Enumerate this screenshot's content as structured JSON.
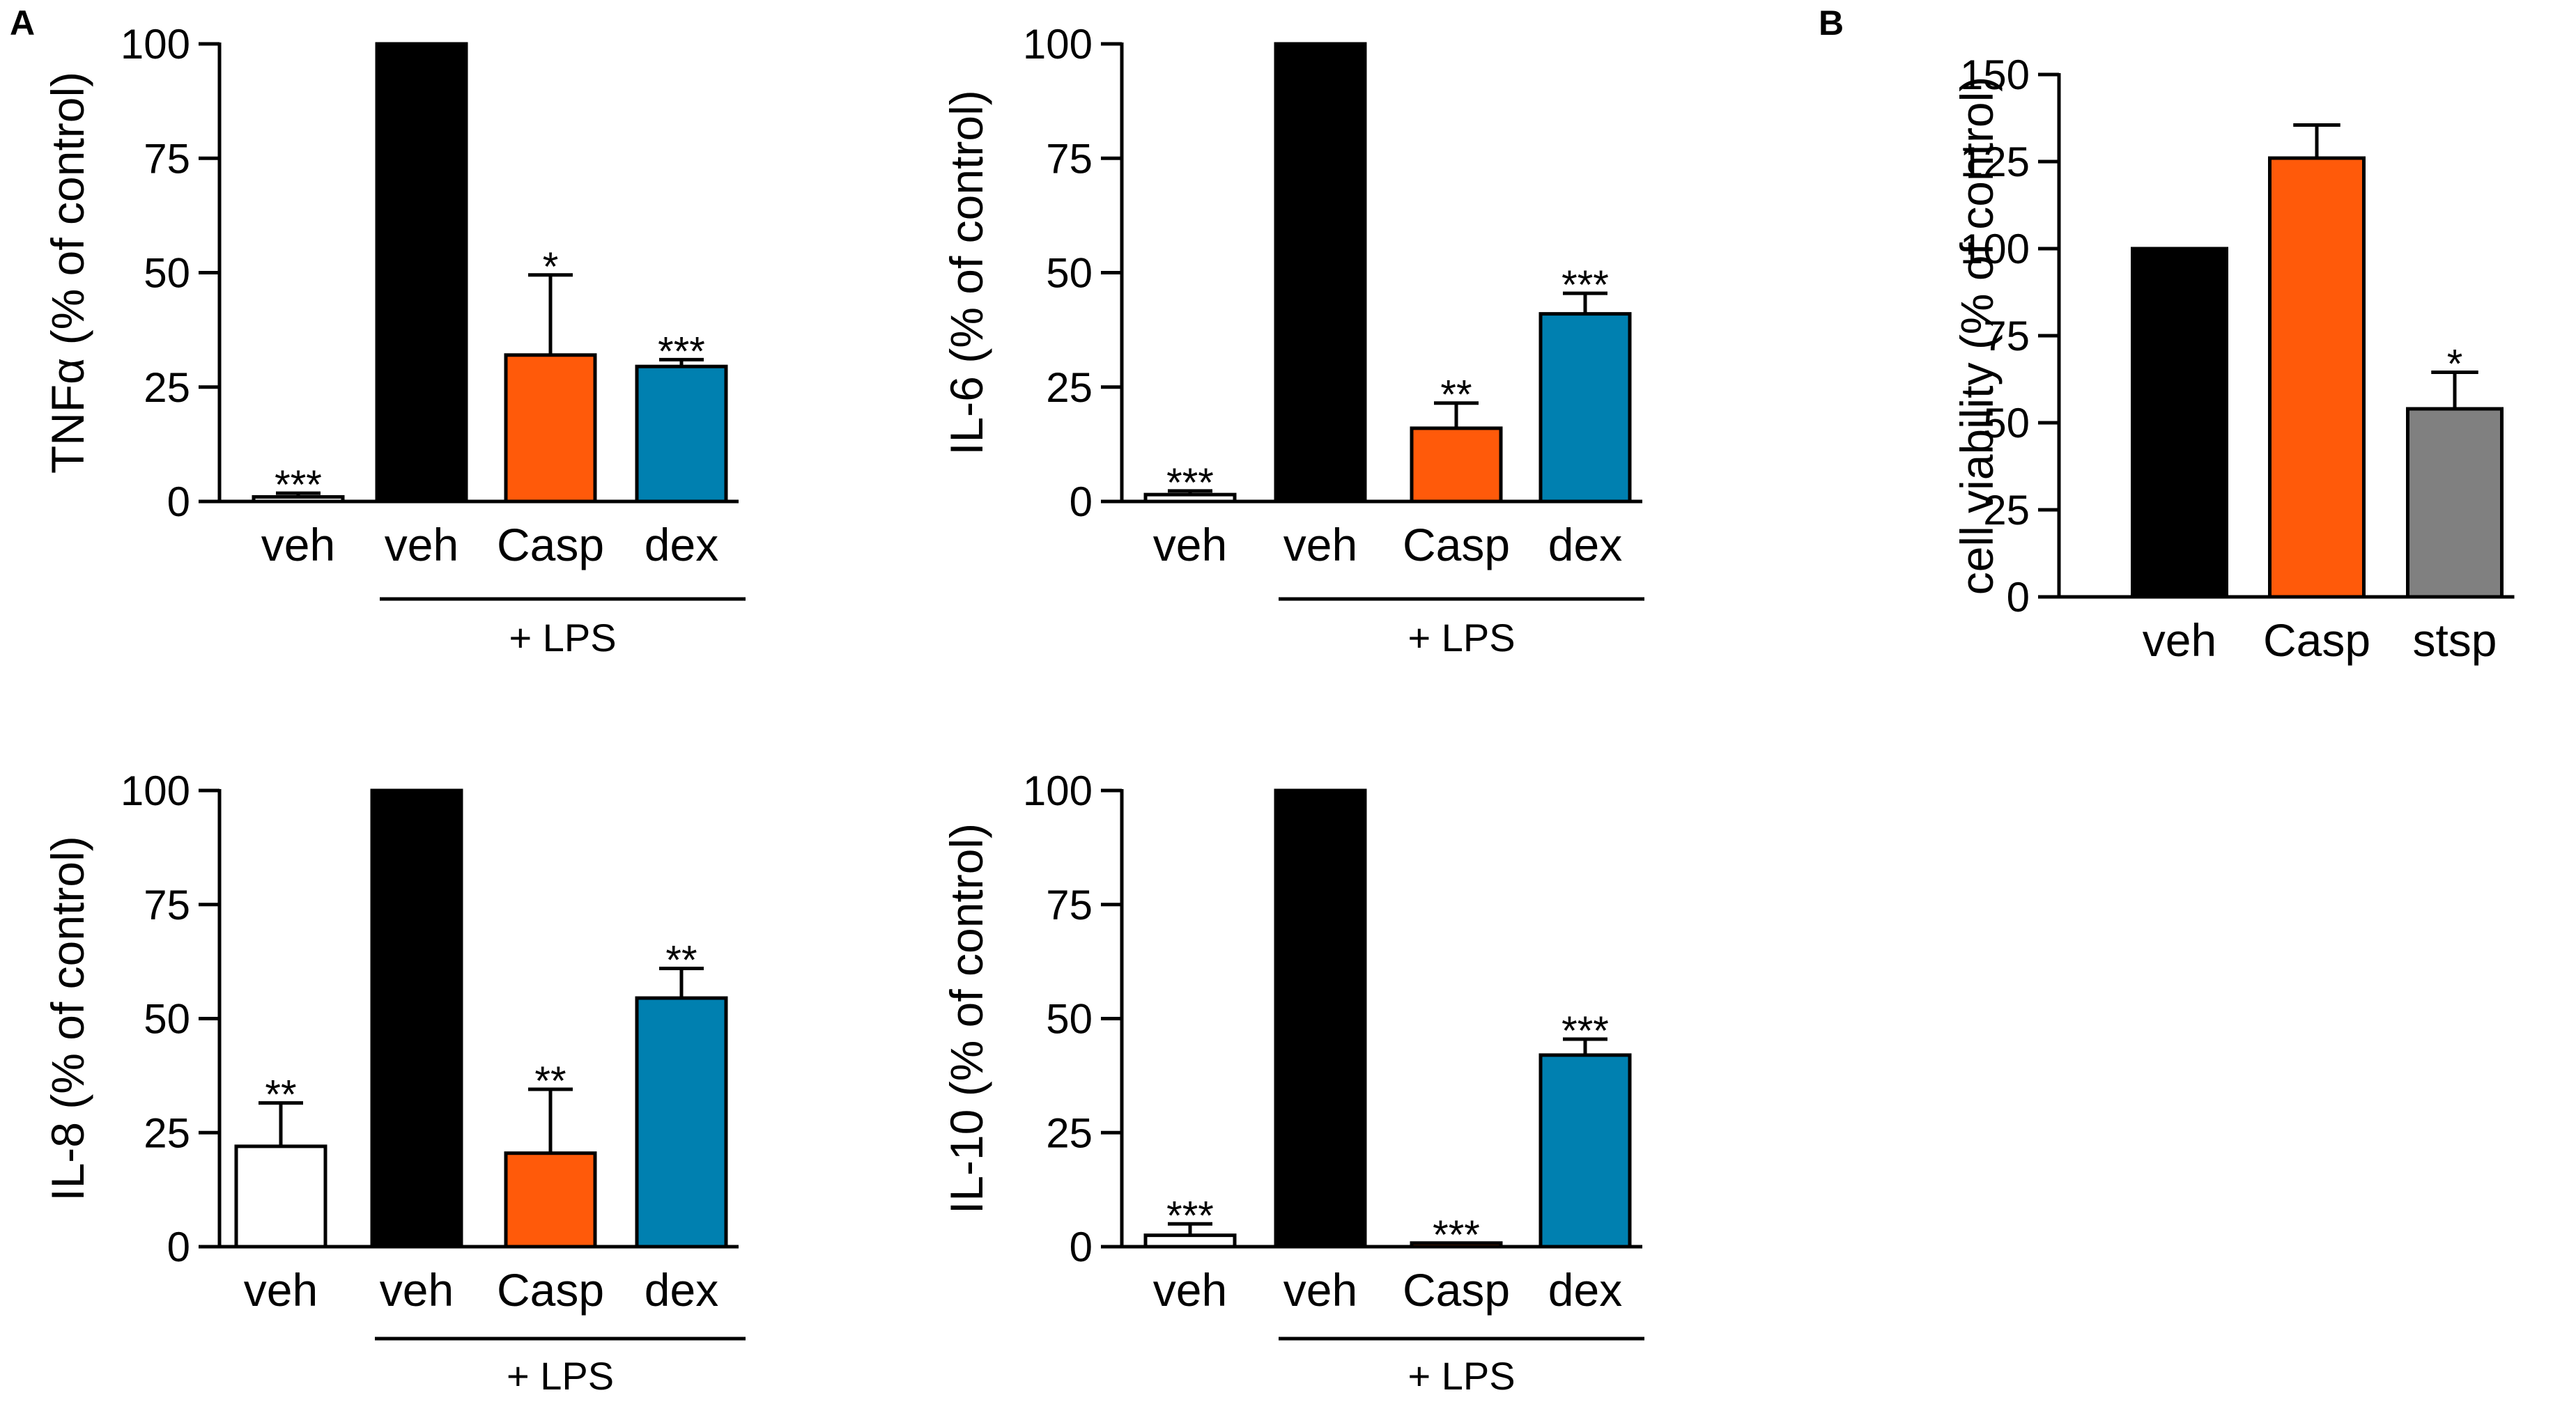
{
  "panel_labels": [
    "A",
    "B"
  ],
  "colors": {
    "veh_control": "#ffffff",
    "veh_lps": "#000000",
    "casp": "#ff5a0a",
    "dex": "#0080b0",
    "stsp": "#808080",
    "axis": "#000000"
  },
  "chart_data": [
    {
      "panel": "A",
      "type": "bar",
      "title": "",
      "ylabel": "TNFα (% of control)",
      "ylim": [
        0,
        100
      ],
      "yticks": [
        0,
        25,
        50,
        75,
        100
      ],
      "categories": [
        "veh",
        "veh",
        "Casp",
        "dex"
      ],
      "values": [
        1,
        100,
        32,
        29.5
      ],
      "errors": [
        0.8,
        0,
        17.5,
        1.5
      ],
      "significance": [
        "***",
        "",
        "*",
        "***"
      ],
      "fills": [
        "#ffffff",
        "#000000",
        "#ff5a0a",
        "#0080b0"
      ],
      "group_label": "+ LPS"
    },
    {
      "panel": "A",
      "type": "bar",
      "title": "",
      "ylabel": "IL-6 (% of control)",
      "ylim": [
        0,
        100
      ],
      "yticks": [
        0,
        25,
        50,
        75,
        100
      ],
      "categories": [
        "veh",
        "veh",
        "Casp",
        "dex"
      ],
      "values": [
        1.5,
        100,
        16,
        41
      ],
      "errors": [
        0.8,
        0,
        5.5,
        4.5
      ],
      "significance": [
        "***",
        "",
        "**",
        "***"
      ],
      "fills": [
        "#ffffff",
        "#000000",
        "#ff5a0a",
        "#0080b0"
      ],
      "group_label": "+ LPS"
    },
    {
      "panel": "A",
      "type": "bar",
      "title": "",
      "ylabel": "IL-8 (% of control)",
      "ylim": [
        0,
        100
      ],
      "yticks": [
        0,
        25,
        50,
        75,
        100
      ],
      "categories": [
        "veh",
        "veh",
        "Casp",
        "dex"
      ],
      "values": [
        22,
        100,
        20.5,
        54.5
      ],
      "errors": [
        9.5,
        0,
        14,
        6.5
      ],
      "significance": [
        "**",
        "",
        "**",
        "**"
      ],
      "fills": [
        "#ffffff",
        "#000000",
        "#ff5a0a",
        "#0080b0"
      ],
      "group_label": "+ LPS"
    },
    {
      "panel": "A",
      "type": "bar",
      "title": "",
      "ylabel": "IL-10 (% of control)",
      "ylim": [
        0,
        100
      ],
      "yticks": [
        0,
        25,
        50,
        75,
        100
      ],
      "categories": [
        "veh",
        "veh",
        "Casp",
        "dex"
      ],
      "values": [
        2.5,
        100,
        0.8,
        42
      ],
      "errors": [
        2.5,
        0,
        0,
        3.5
      ],
      "significance": [
        "***",
        "",
        "***",
        "***"
      ],
      "fills": [
        "#ffffff",
        "#000000",
        "#ff5a0a",
        "#0080b0"
      ],
      "group_label": "+ LPS"
    },
    {
      "panel": "B",
      "type": "bar",
      "title": "",
      "ylabel": "cell viability (% of control)",
      "ylim": [
        0,
        150
      ],
      "yticks": [
        0,
        25,
        50,
        75,
        100,
        125,
        150
      ],
      "categories": [
        "veh",
        "Casp",
        "stsp"
      ],
      "values": [
        100,
        126,
        54
      ],
      "errors": [
        0,
        9.5,
        10.5
      ],
      "significance": [
        "",
        "",
        "*"
      ],
      "fills": [
        "#000000",
        "#ff5a0a",
        "#808080"
      ],
      "group_label": ""
    }
  ]
}
